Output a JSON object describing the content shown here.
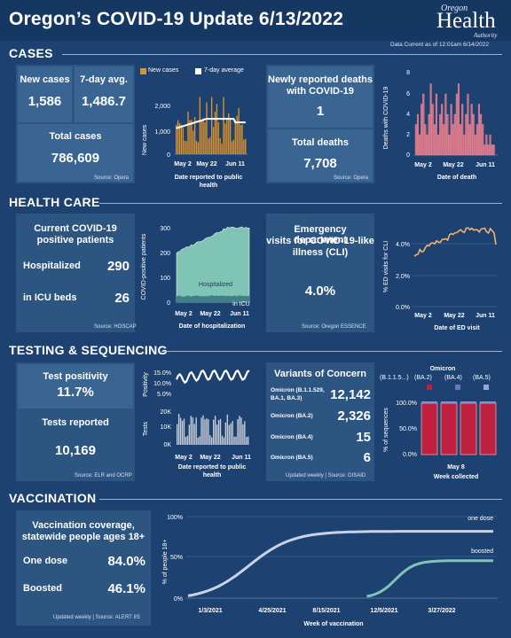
{
  "header": {
    "title": "Oregon’s COVID-19 Update 6/13/2022",
    "logo_top": "Oregon",
    "logo_main": "Health",
    "logo_bottom": "Authority",
    "data_current": "Data Current as of 12:01am 6/14/2022"
  },
  "cases": {
    "section": "CASES",
    "new_cases_label": "New cases",
    "new_cases_value": "1,586",
    "avg_label": "7-day avg.",
    "avg_value": "1,486.7",
    "total_label": "Total cases",
    "total_value": "786,609",
    "source": "Source: Opera",
    "chart": {
      "legend_new": "New cases",
      "legend_avg": "7-day average",
      "ylabel": "New cases",
      "xlabel_line1": "Date reported to public",
      "xlabel_line2": "health",
      "y_ticks": [
        "2,000",
        "1,000",
        "0"
      ],
      "x_ticks": [
        "May 2",
        "May 22",
        "Jun 11"
      ],
      "new_color": "#e0922a",
      "avg_color": "#ffffff"
    },
    "deaths_label_line1": "Newly reported deaths",
    "deaths_label_line2": "with COVID-19",
    "deaths_value": "1",
    "total_deaths_label": "Total deaths",
    "total_deaths_value": "7,708",
    "deaths_source": "Source: Opera",
    "deaths_chart": {
      "ylabel": "Deaths with COVID-19",
      "xlabel": "Date of death",
      "y_ticks": [
        "8",
        "6",
        "4",
        "2",
        "0"
      ],
      "x_ticks": [
        "May 2",
        "May 22",
        "Jun 11"
      ],
      "color": "#d46a7e"
    }
  },
  "healthcare": {
    "section": "HEALTH CARE",
    "current_label_line1": "Current COVID-19",
    "current_label_line2": "positive patients",
    "hosp_label": "Hospitalized",
    "hosp_value": "290",
    "icu_label": "in ICU beds",
    "icu_value": "26",
    "source": "Source: HOSCAP",
    "hosp_chart": {
      "ylabel": "COVID-positive patients",
      "xlabel": "Date of hospitalization",
      "y_ticks": [
        "300",
        "200",
        "100",
        "0"
      ],
      "x_ticks": [
        "May 2",
        "May 22",
        "Jun 11"
      ],
      "area_label": "Hospitalized",
      "icu_label": "in ICU",
      "area_color": "#7fc4b4"
    },
    "ed_label_line1": "Emergency department",
    "ed_label_line2": "visits for COVID-19-like",
    "ed_label_line3": "illness (CLI)",
    "ed_value": "4.0%",
    "ed_source": "Source: Oregon ESSENCE",
    "ed_chart": {
      "ylabel": "% ED visits for CLI",
      "xlabel": "Date of ED visit",
      "y_ticks": [
        "4.0%",
        "2.0%",
        "0.0%"
      ],
      "x_ticks": [
        "May 2",
        "May 22",
        "Jun 11"
      ],
      "color": "#f1b26a"
    }
  },
  "testing": {
    "section": "TESTING & SEQUENCING",
    "positivity_label": "Test positivity",
    "positivity_value": "11.7%",
    "tests_label": "Tests reported",
    "tests_value": "10,169",
    "source": "Source: ELR and OCRP",
    "pos_chart": {
      "ylabel": "Positivity",
      "y_ticks": [
        "15.0%",
        "10.0%",
        "5.0%"
      ]
    },
    "tests_chart": {
      "ylabel": "Tests",
      "y_ticks": [
        "20K",
        "10K",
        "0K"
      ],
      "x_ticks": [
        "May 2",
        "May 22",
        "Jun 11"
      ],
      "xlabel_line1": "Date reported to public",
      "xlabel_line2": "health"
    },
    "variants_title": "Variants of Concern",
    "variants": [
      {
        "name_line1": "Omicron (B.1.1.529,",
        "name_line2": "BA.1, BA.3)",
        "value": "12,142"
      },
      {
        "name_line1": "Omicron (BA.2)",
        "name_line2": "",
        "value": "2,326"
      },
      {
        "name_line1": "Omicron (BA.4)",
        "name_line2": "",
        "value": "15"
      },
      {
        "name_line1": "Omicron (BA.5)",
        "name_line2": "",
        "value": "6"
      }
    ],
    "variants_source": "Updated weekly | Source: GISAID",
    "seq_chart": {
      "legend_title": "Omicron",
      "legend_items": [
        "(B.1.1.5...)",
        "(BA.2)",
        "(BA.4)",
        "(BA.5)"
      ],
      "ylabel": "% of sequences",
      "y_ticks": [
        "100.0%",
        "50.0%",
        "0.0%"
      ],
      "x_tick": "May 8",
      "xlabel": "Week collected",
      "color": "#c0203f"
    }
  },
  "vaccination": {
    "section": "VACCINATION",
    "label_line1": "Vaccination coverage,",
    "label_line2": "statewide people ages 18+",
    "one_dose_label": "One dose",
    "one_dose_value": "84.0%",
    "boosted_label": "Boosted",
    "boosted_value": "46.1%",
    "source": "Updated weekly | Source: ALERT IIS",
    "chart": {
      "ylabel": "% of people 18+",
      "xlabel": "Week of vaccination",
      "y_ticks": [
        "100%",
        "50%",
        "0%"
      ],
      "x_ticks": [
        "1/3/2021",
        "4/25/2021",
        "8/15/2021",
        "12/5/2021",
        "3/27/2022"
      ],
      "series_one": "one dose",
      "series_boost": "boosted",
      "one_color": "#c9d3e6",
      "boost_color": "#7fc4b4"
    }
  }
}
